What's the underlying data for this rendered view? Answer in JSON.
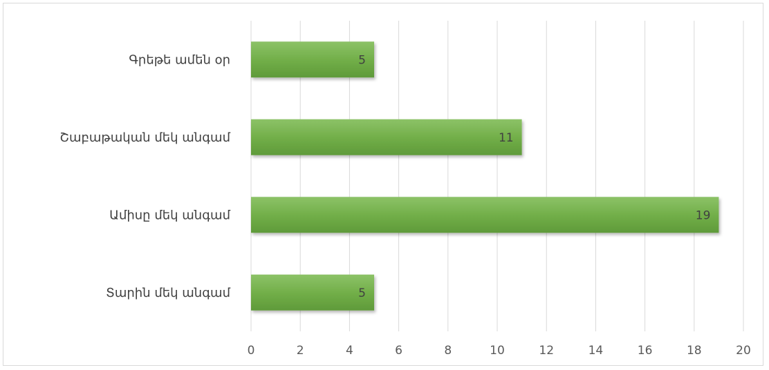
{
  "chart_data": {
    "type": "bar",
    "orientation": "horizontal",
    "title": "",
    "xlabel": "",
    "ylabel": "",
    "categories": [
      "Գրեթե ամեն օր",
      "Շաբաթական մեկ անգամ",
      "Ամիսը մեկ անգամ",
      "Տարին մեկ անգամ"
    ],
    "values": [
      5,
      11,
      19,
      5
    ],
    "xlim": [
      0,
      20
    ],
    "xticks": [
      0,
      2,
      4,
      6,
      8,
      10,
      12,
      14,
      16,
      18,
      20
    ],
    "grid": true,
    "legend": "none",
    "data_labels": true,
    "bar_color": "#70ad47"
  }
}
